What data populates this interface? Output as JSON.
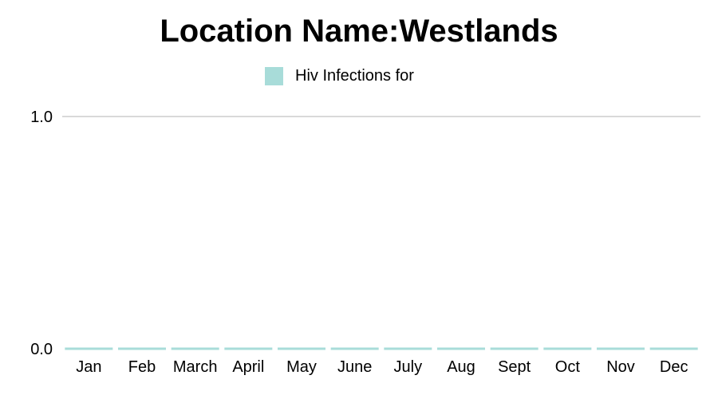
{
  "chart_data": {
    "type": "bar",
    "title": "Location Name:Westlands",
    "xlabel": "",
    "ylabel": "",
    "categories": [
      "Jan",
      "Feb",
      "March",
      "April",
      "May",
      "June",
      "July",
      "Aug",
      "Sept",
      "Oct",
      "Nov",
      "Dec"
    ],
    "series": [
      {
        "name": "Hiv Infections for",
        "color": "#a8dcd9",
        "values": [
          0,
          0,
          0,
          0,
          0,
          0,
          0,
          0,
          0,
          0,
          0,
          0
        ]
      }
    ],
    "ylim": [
      0,
      1
    ],
    "yticks": [
      0,
      1
    ],
    "ytick_labels": [
      "0.0",
      "1.0"
    ],
    "grid": true,
    "legend_position": "top-center"
  }
}
